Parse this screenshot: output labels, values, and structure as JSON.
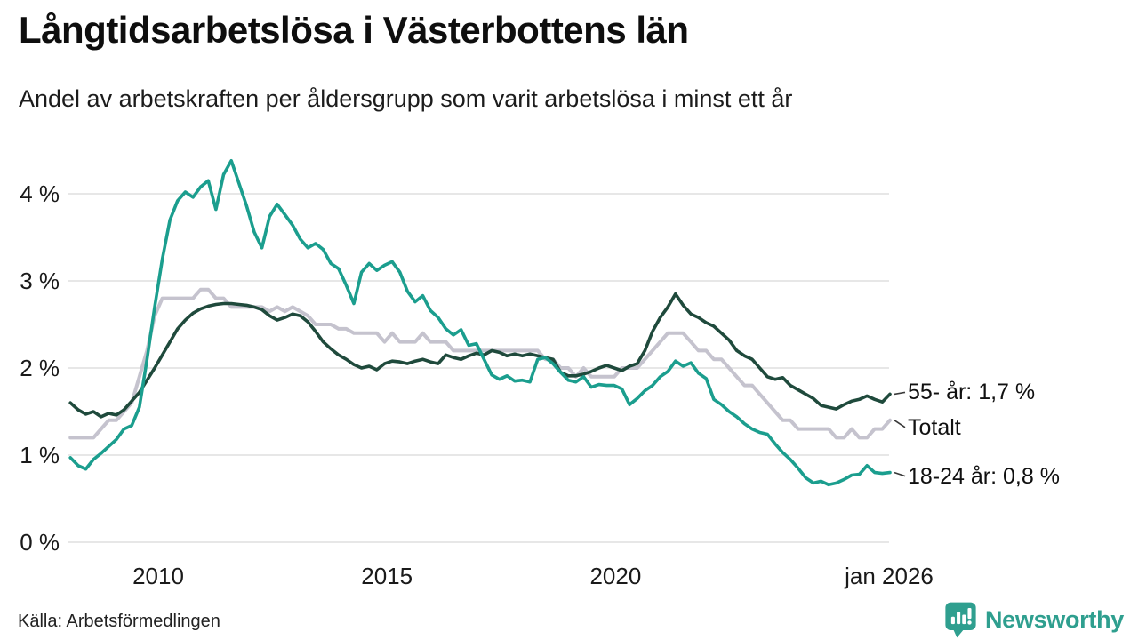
{
  "header": {
    "title": "Långtidsarbetslösa i Västerbottens län",
    "subtitle": "Andel av arbetskraften per åldersgrupp som varit arbetslösa i minst ett år"
  },
  "footer": {
    "source": "Källa: Arbetsförmedlingen",
    "brand": "Newsworthy"
  },
  "colors": {
    "series_55": "#1f4a3c",
    "series_total": "#c5c3ce",
    "series_18_24": "#1b9e8e",
    "gridline": "#e7e7e7",
    "axis_text": "#1a1a1a",
    "brand_teal": "#2f9f8f",
    "connector": "#3a3a3a"
  },
  "chart_data": {
    "type": "line",
    "title": "Långtidsarbetslösa i Västerbottens län",
    "subtitle": "Andel av arbetskraften per åldersgrupp som varit arbetslösa i minst ett år",
    "xlabel": "",
    "ylabel": "",
    "grid": true,
    "legend_position": "right-end-labels",
    "ylim": [
      0,
      4.5
    ],
    "x_start": 2008.08,
    "x_end": 2026.0,
    "y_ticks": [
      {
        "value": 0,
        "label": "0 %"
      },
      {
        "value": 1,
        "label": "1 %"
      },
      {
        "value": 2,
        "label": "2 %"
      },
      {
        "value": 3,
        "label": "3 %"
      },
      {
        "value": 4,
        "label": "4 %"
      }
    ],
    "x_ticks": [
      {
        "value": 2010,
        "label": "2010"
      },
      {
        "value": 2015,
        "label": "2015"
      },
      {
        "value": 2020,
        "label": "2020"
      },
      {
        "value": 2025.98,
        "label": "jan 2026"
      }
    ],
    "series": [
      {
        "name": "55- år",
        "label": "55- år: 1,7 %",
        "end_value": "1,7 %",
        "color": "#1f4a3c",
        "values": [
          1.6,
          1.52,
          1.47,
          1.5,
          1.44,
          1.48,
          1.46,
          1.52,
          1.62,
          1.72,
          1.86,
          2.0,
          2.15,
          2.3,
          2.45,
          2.55,
          2.63,
          2.68,
          2.71,
          2.73,
          2.74,
          2.74,
          2.73,
          2.72,
          2.7,
          2.67,
          2.6,
          2.55,
          2.58,
          2.62,
          2.6,
          2.53,
          2.42,
          2.3,
          2.22,
          2.15,
          2.1,
          2.04,
          2.0,
          2.02,
          1.98,
          2.05,
          2.08,
          2.07,
          2.05,
          2.08,
          2.1,
          2.07,
          2.05,
          2.15,
          2.12,
          2.1,
          2.14,
          2.17,
          2.15,
          2.2,
          2.18,
          2.14,
          2.16,
          2.14,
          2.16,
          2.14,
          2.12,
          2.1,
          1.95,
          1.91,
          1.91,
          1.93,
          1.96,
          2.0,
          2.03,
          2.0,
          1.97,
          2.02,
          2.05,
          2.2,
          2.42,
          2.58,
          2.7,
          2.85,
          2.72,
          2.62,
          2.58,
          2.52,
          2.48,
          2.4,
          2.32,
          2.2,
          2.14,
          2.1,
          2.0,
          1.9,
          1.87,
          1.89,
          1.8,
          1.75,
          1.7,
          1.65,
          1.57,
          1.55,
          1.53,
          1.58,
          1.62,
          1.64,
          1.68,
          1.64,
          1.61,
          1.7
        ]
      },
      {
        "name": "Totalt",
        "label": "Totalt",
        "end_value": "",
        "color": "#c5c3ce",
        "values": [
          1.2,
          1.2,
          1.2,
          1.2,
          1.3,
          1.4,
          1.4,
          1.5,
          1.6,
          1.9,
          2.2,
          2.6,
          2.8,
          2.8,
          2.8,
          2.8,
          2.8,
          2.9,
          2.9,
          2.8,
          2.8,
          2.7,
          2.7,
          2.7,
          2.7,
          2.7,
          2.65,
          2.7,
          2.65,
          2.7,
          2.65,
          2.6,
          2.5,
          2.5,
          2.5,
          2.45,
          2.45,
          2.4,
          2.4,
          2.4,
          2.4,
          2.3,
          2.4,
          2.3,
          2.3,
          2.3,
          2.4,
          2.3,
          2.3,
          2.3,
          2.2,
          2.2,
          2.2,
          2.2,
          2.2,
          2.2,
          2.2,
          2.2,
          2.2,
          2.2,
          2.2,
          2.2,
          2.1,
          2.1,
          2.0,
          2.0,
          1.9,
          2.0,
          1.9,
          1.9,
          1.9,
          1.9,
          2.0,
          2.0,
          2.0,
          2.1,
          2.2,
          2.3,
          2.4,
          2.4,
          2.4,
          2.3,
          2.2,
          2.2,
          2.1,
          2.1,
          2.0,
          1.9,
          1.8,
          1.8,
          1.7,
          1.6,
          1.5,
          1.4,
          1.4,
          1.3,
          1.3,
          1.3,
          1.3,
          1.3,
          1.2,
          1.2,
          1.3,
          1.2,
          1.2,
          1.3,
          1.3,
          1.4
        ]
      },
      {
        "name": "18-24 år",
        "label": "18-24 år: 0,8 %",
        "end_value": "0,8 %",
        "color": "#1b9e8e",
        "values": [
          0.97,
          0.88,
          0.84,
          0.95,
          1.02,
          1.1,
          1.18,
          1.3,
          1.34,
          1.55,
          2.1,
          2.7,
          3.25,
          3.7,
          3.92,
          4.02,
          3.96,
          4.08,
          4.15,
          3.82,
          4.22,
          4.38,
          4.12,
          3.86,
          3.56,
          3.38,
          3.74,
          3.88,
          3.76,
          3.64,
          3.48,
          3.38,
          3.43,
          3.36,
          3.2,
          3.14,
          2.95,
          2.74,
          3.1,
          3.2,
          3.12,
          3.18,
          3.22,
          3.1,
          2.88,
          2.76,
          2.83,
          2.66,
          2.58,
          2.45,
          2.38,
          2.44,
          2.26,
          2.28,
          2.1,
          1.92,
          1.87,
          1.91,
          1.85,
          1.86,
          1.84,
          2.1,
          2.12,
          2.05,
          1.95,
          1.86,
          1.84,
          1.9,
          1.78,
          1.81,
          1.8,
          1.8,
          1.76,
          1.58,
          1.65,
          1.74,
          1.8,
          1.9,
          1.96,
          2.08,
          2.02,
          2.06,
          1.94,
          1.88,
          1.64,
          1.58,
          1.5,
          1.44,
          1.36,
          1.3,
          1.26,
          1.24,
          1.13,
          1.03,
          0.95,
          0.85,
          0.74,
          0.68,
          0.7,
          0.66,
          0.68,
          0.72,
          0.77,
          0.78,
          0.88,
          0.8,
          0.79,
          0.8
        ]
      }
    ]
  }
}
